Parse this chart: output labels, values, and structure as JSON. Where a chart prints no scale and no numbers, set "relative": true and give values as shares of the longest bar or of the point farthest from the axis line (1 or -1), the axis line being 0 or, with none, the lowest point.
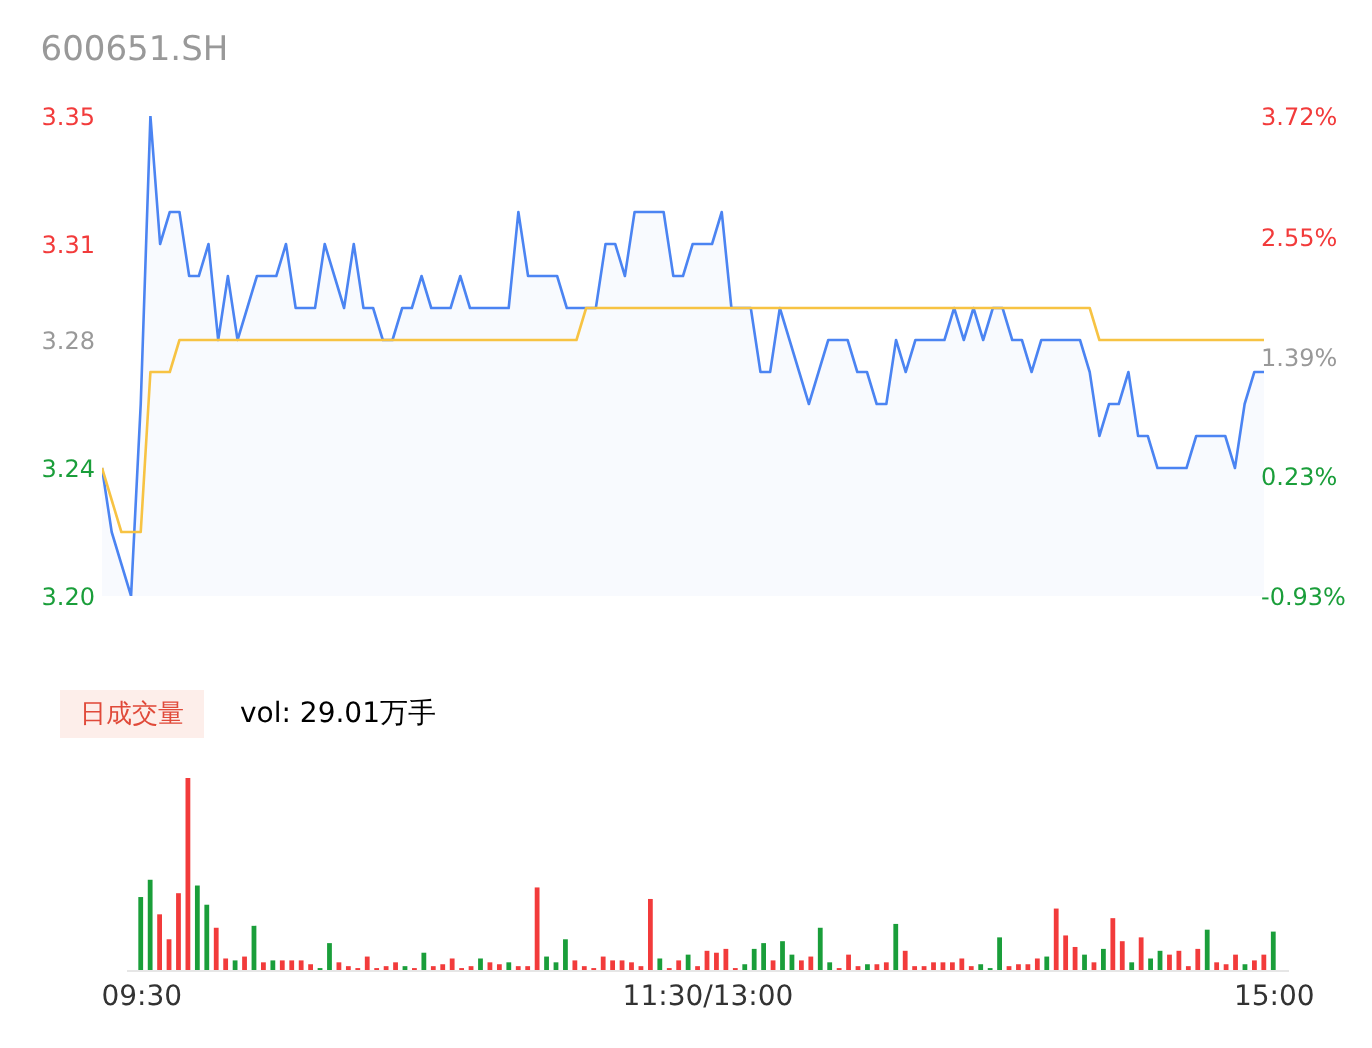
{
  "chart_data": [
    {
      "type": "line",
      "title": "600651.SH",
      "tick_labels": "y",
      "legend": false,
      "grid": false,
      "marker": "none",
      "line_style": "solid",
      "categories": [
        null,
        null,
        null,
        null,
        null,
        null,
        null,
        null,
        null,
        null,
        null,
        null,
        null,
        null,
        null,
        null,
        null,
        null,
        null,
        null,
        null,
        null,
        null,
        null,
        null,
        null,
        null,
        null,
        null,
        null,
        null,
        null,
        null,
        null,
        null,
        null,
        null,
        null,
        null,
        null,
        null,
        null,
        null,
        null,
        null,
        null,
        null,
        null,
        null,
        null,
        null,
        null,
        null,
        null,
        null,
        null,
        null,
        null,
        null,
        null,
        null,
        null,
        null,
        null,
        null,
        null,
        null,
        null,
        null,
        null,
        null,
        null,
        null,
        null,
        null,
        null,
        null,
        null,
        null,
        null,
        null,
        null,
        null,
        null,
        null,
        null,
        null,
        null,
        null,
        null,
        null,
        null,
        null,
        null,
        null,
        null,
        null,
        null,
        null,
        null,
        null,
        null,
        null,
        null,
        null,
        null,
        null,
        null,
        null,
        null,
        null,
        null,
        null,
        null,
        null,
        null,
        null,
        null,
        null,
        null,
        null
      ],
      "ylim": [
        3.2,
        3.35
      ],
      "yticks": [
        {
          "value": 3.2,
          "label": "3.20"
        },
        {
          "value": 3.24,
          "label": "3.24"
        },
        {
          "value": 3.28,
          "label": "3.28"
        },
        {
          "value": 3.31,
          "label": "3.31"
        },
        {
          "value": 3.35,
          "label": "3.35"
        }
      ],
      "y2lim": [
        -0.93,
        3.72
      ],
      "y2ticks": [
        {
          "value": -0.93,
          "label": "-0.93%"
        },
        {
          "value": 0.23,
          "label": "0.23%"
        },
        {
          "value": 1.39,
          "label": "1.39%"
        },
        {
          "value": 2.55,
          "label": "2.55%"
        },
        {
          "value": 3.72,
          "label": "3.72%"
        }
      ],
      "series": [
        {
          "type": "area",
          "color": "#4b84f2",
          "values": [
            3.24,
            3.22,
            3.21,
            3.2,
            3.26,
            3.35,
            3.31,
            3.32,
            3.32,
            3.3,
            3.3,
            3.31,
            3.28,
            3.3,
            3.28,
            3.29,
            3.3,
            3.3,
            3.3,
            3.31,
            3.29,
            3.29,
            3.29,
            3.31,
            3.3,
            3.29,
            3.31,
            3.29,
            3.29,
            3.28,
            3.28,
            3.29,
            3.29,
            3.3,
            3.29,
            3.29,
            3.29,
            3.3,
            3.29,
            3.29,
            3.29,
            3.29,
            3.29,
            3.32,
            3.3,
            3.3,
            3.3,
            3.3,
            3.29,
            3.29,
            3.29,
            3.29,
            3.31,
            3.31,
            3.3,
            3.32,
            3.32,
            3.32,
            3.32,
            3.3,
            3.3,
            3.31,
            3.31,
            3.31,
            3.32,
            3.29,
            3.29,
            3.29,
            3.27,
            3.27,
            3.29,
            3.28,
            3.27,
            3.26,
            3.27,
            3.28,
            3.28,
            3.28,
            3.27,
            3.27,
            3.26,
            3.26,
            3.28,
            3.27,
            3.28,
            3.28,
            3.28,
            3.28,
            3.29,
            3.28,
            3.29,
            3.28,
            3.29,
            3.29,
            3.28,
            3.28,
            3.27,
            3.28,
            3.28,
            3.28,
            3.28,
            3.28,
            3.27,
            3.25,
            3.26,
            3.26,
            3.27,
            3.25,
            3.25,
            3.24,
            3.24,
            3.24,
            3.24,
            3.25,
            3.25,
            3.25,
            3.25,
            3.24,
            3.26,
            3.27,
            3.27
          ]
        },
        {
          "type": "line",
          "color": "#f7c343",
          "values": [
            3.24,
            3.23,
            3.22,
            3.22,
            3.22,
            3.27,
            3.27,
            3.27,
            3.28,
            3.28,
            3.28,
            3.28,
            3.28,
            3.28,
            3.28,
            3.28,
            3.28,
            3.28,
            3.28,
            3.28,
            3.28,
            3.28,
            3.28,
            3.28,
            3.28,
            3.28,
            3.28,
            3.28,
            3.28,
            3.28,
            3.28,
            3.28,
            3.28,
            3.28,
            3.28,
            3.28,
            3.28,
            3.28,
            3.28,
            3.28,
            3.28,
            3.28,
            3.28,
            3.28,
            3.28,
            3.28,
            3.28,
            3.28,
            3.28,
            3.28,
            3.29,
            3.29,
            3.29,
            3.29,
            3.29,
            3.29,
            3.29,
            3.29,
            3.29,
            3.29,
            3.29,
            3.29,
            3.29,
            3.29,
            3.29,
            3.29,
            3.29,
            3.29,
            3.29,
            3.29,
            3.29,
            3.29,
            3.29,
            3.29,
            3.29,
            3.29,
            3.29,
            3.29,
            3.29,
            3.29,
            3.29,
            3.29,
            3.29,
            3.29,
            3.29,
            3.29,
            3.29,
            3.29,
            3.29,
            3.29,
            3.29,
            3.29,
            3.29,
            3.29,
            3.29,
            3.29,
            3.29,
            3.29,
            3.29,
            3.29,
            3.29,
            3.29,
            3.29,
            3.28,
            3.28,
            3.28,
            3.28,
            3.28,
            3.28,
            3.28,
            3.28,
            3.28,
            3.28,
            3.28,
            3.28,
            3.28,
            3.28,
            3.28,
            3.28,
            3.28,
            3.28
          ]
        }
      ]
    },
    {
      "type": "bar",
      "relative": true,
      "legend": false,
      "grid": false,
      "annotations": [
        "日成交量",
        "vol: 29.01万手"
      ],
      "categories": [
        "09:30",
        null,
        null,
        null,
        null,
        null,
        null,
        null,
        null,
        null,
        null,
        null,
        null,
        null,
        null,
        null,
        null,
        null,
        null,
        null,
        null,
        null,
        null,
        null,
        null,
        null,
        null,
        null,
        null,
        null,
        null,
        null,
        null,
        null,
        null,
        null,
        null,
        null,
        null,
        null,
        null,
        null,
        null,
        null,
        null,
        null,
        null,
        null,
        null,
        null,
        null,
        null,
        null,
        null,
        null,
        null,
        null,
        null,
        null,
        null,
        "11:30/13:00",
        null,
        null,
        null,
        null,
        null,
        null,
        null,
        null,
        null,
        null,
        null,
        null,
        null,
        null,
        null,
        null,
        null,
        null,
        null,
        null,
        null,
        null,
        null,
        null,
        null,
        null,
        null,
        null,
        null,
        null,
        null,
        null,
        null,
        null,
        null,
        null,
        null,
        null,
        null,
        null,
        null,
        null,
        null,
        null,
        null,
        null,
        null,
        null,
        null,
        null,
        null,
        null,
        null,
        null,
        null,
        null,
        null,
        null,
        null,
        "15:00"
      ],
      "values": [
        0.38,
        0.47,
        0.29,
        0.16,
        0.4,
        1.0,
        0.44,
        0.34,
        0.22,
        0.06,
        0.05,
        0.07,
        0.23,
        0.04,
        0.05,
        0.05,
        0.05,
        0.05,
        0.03,
        0.01,
        0.14,
        0.04,
        0.02,
        0.01,
        0.07,
        0.01,
        0.02,
        0.04,
        0.02,
        0.01,
        0.09,
        0.02,
        0.03,
        0.06,
        0.01,
        0.02,
        0.06,
        0.04,
        0.03,
        0.04,
        0.02,
        0.02,
        0.43,
        0.07,
        0.04,
        0.16,
        0.05,
        0.02,
        0.01,
        0.07,
        0.05,
        0.05,
        0.04,
        0.02,
        0.37,
        0.06,
        0.01,
        0.05,
        0.08,
        0.02,
        0.1,
        0.09,
        0.11,
        0.01,
        0.03,
        0.11,
        0.14,
        0.05,
        0.15,
        0.08,
        0.05,
        0.07,
        0.22,
        0.04,
        0.01,
        0.08,
        0.02,
        0.03,
        0.03,
        0.04,
        0.24,
        0.1,
        0.02,
        0.02,
        0.04,
        0.04,
        0.04,
        0.06,
        0.02,
        0.03,
        0.01,
        0.17,
        0.02,
        0.03,
        0.03,
        0.06,
        0.07,
        0.32,
        0.18,
        0.12,
        0.08,
        0.04,
        0.11,
        0.27,
        0.15,
        0.04,
        0.17,
        0.06,
        0.1,
        0.08,
        0.1,
        0.02,
        0.11,
        0.21,
        0.04,
        0.03,
        0.08,
        0.03,
        0.05,
        0.08,
        0.2
      ],
      "colors": [
        "#1a9e3a",
        "#1a9e3a",
        "#f23b3b",
        "#f23b3b",
        "#f23b3b",
        "#f23b3b",
        "#1a9e3a",
        "#1a9e3a",
        "#f23b3b",
        "#f23b3b",
        "#1a9e3a",
        "#f23b3b",
        "#1a9e3a",
        "#f23b3b",
        "#1a9e3a",
        "#f23b3b",
        "#f23b3b",
        "#f23b3b",
        "#f23b3b",
        "#1a9e3a",
        "#1a9e3a",
        "#f23b3b",
        "#f23b3b",
        "#f23b3b",
        "#f23b3b",
        "#f23b3b",
        "#f23b3b",
        "#f23b3b",
        "#1a9e3a",
        "#f23b3b",
        "#1a9e3a",
        "#f23b3b",
        "#f23b3b",
        "#f23b3b",
        "#f23b3b",
        "#f23b3b",
        "#1a9e3a",
        "#f23b3b",
        "#f23b3b",
        "#1a9e3a",
        "#f23b3b",
        "#f23b3b",
        "#f23b3b",
        "#1a9e3a",
        "#1a9e3a",
        "#1a9e3a",
        "#f23b3b",
        "#f23b3b",
        "#f23b3b",
        "#f23b3b",
        "#f23b3b",
        "#f23b3b",
        "#f23b3b",
        "#f23b3b",
        "#f23b3b",
        "#1a9e3a",
        "#f23b3b",
        "#f23b3b",
        "#1a9e3a",
        "#f23b3b",
        "#f23b3b",
        "#f23b3b",
        "#f23b3b",
        "#f23b3b",
        "#1a9e3a",
        "#1a9e3a",
        "#1a9e3a",
        "#f23b3b",
        "#1a9e3a",
        "#1a9e3a",
        "#f23b3b",
        "#f23b3b",
        "#1a9e3a",
        "#1a9e3a",
        "#f23b3b",
        "#f23b3b",
        "#f23b3b",
        "#1a9e3a",
        "#f23b3b",
        "#f23b3b",
        "#1a9e3a",
        "#f23b3b",
        "#f23b3b",
        "#f23b3b",
        "#f23b3b",
        "#f23b3b",
        "#f23b3b",
        "#f23b3b",
        "#f23b3b",
        "#1a9e3a",
        "#1a9e3a",
        "#1a9e3a",
        "#f23b3b",
        "#f23b3b",
        "#f23b3b",
        "#f23b3b",
        "#1a9e3a",
        "#f23b3b",
        "#f23b3b",
        "#f23b3b",
        "#1a9e3a",
        "#f23b3b",
        "#1a9e3a",
        "#f23b3b",
        "#f23b3b",
        "#1a9e3a",
        "#f23b3b",
        "#1a9e3a",
        "#1a9e3a",
        "#f23b3b",
        "#f23b3b",
        "#f23b3b",
        "#f23b3b",
        "#1a9e3a",
        "#f23b3b",
        "#f23b3b",
        "#f23b3b",
        "#1a9e3a",
        "#f23b3b",
        "#f23b3b",
        "#1a9e3a"
      ]
    }
  ]
}
